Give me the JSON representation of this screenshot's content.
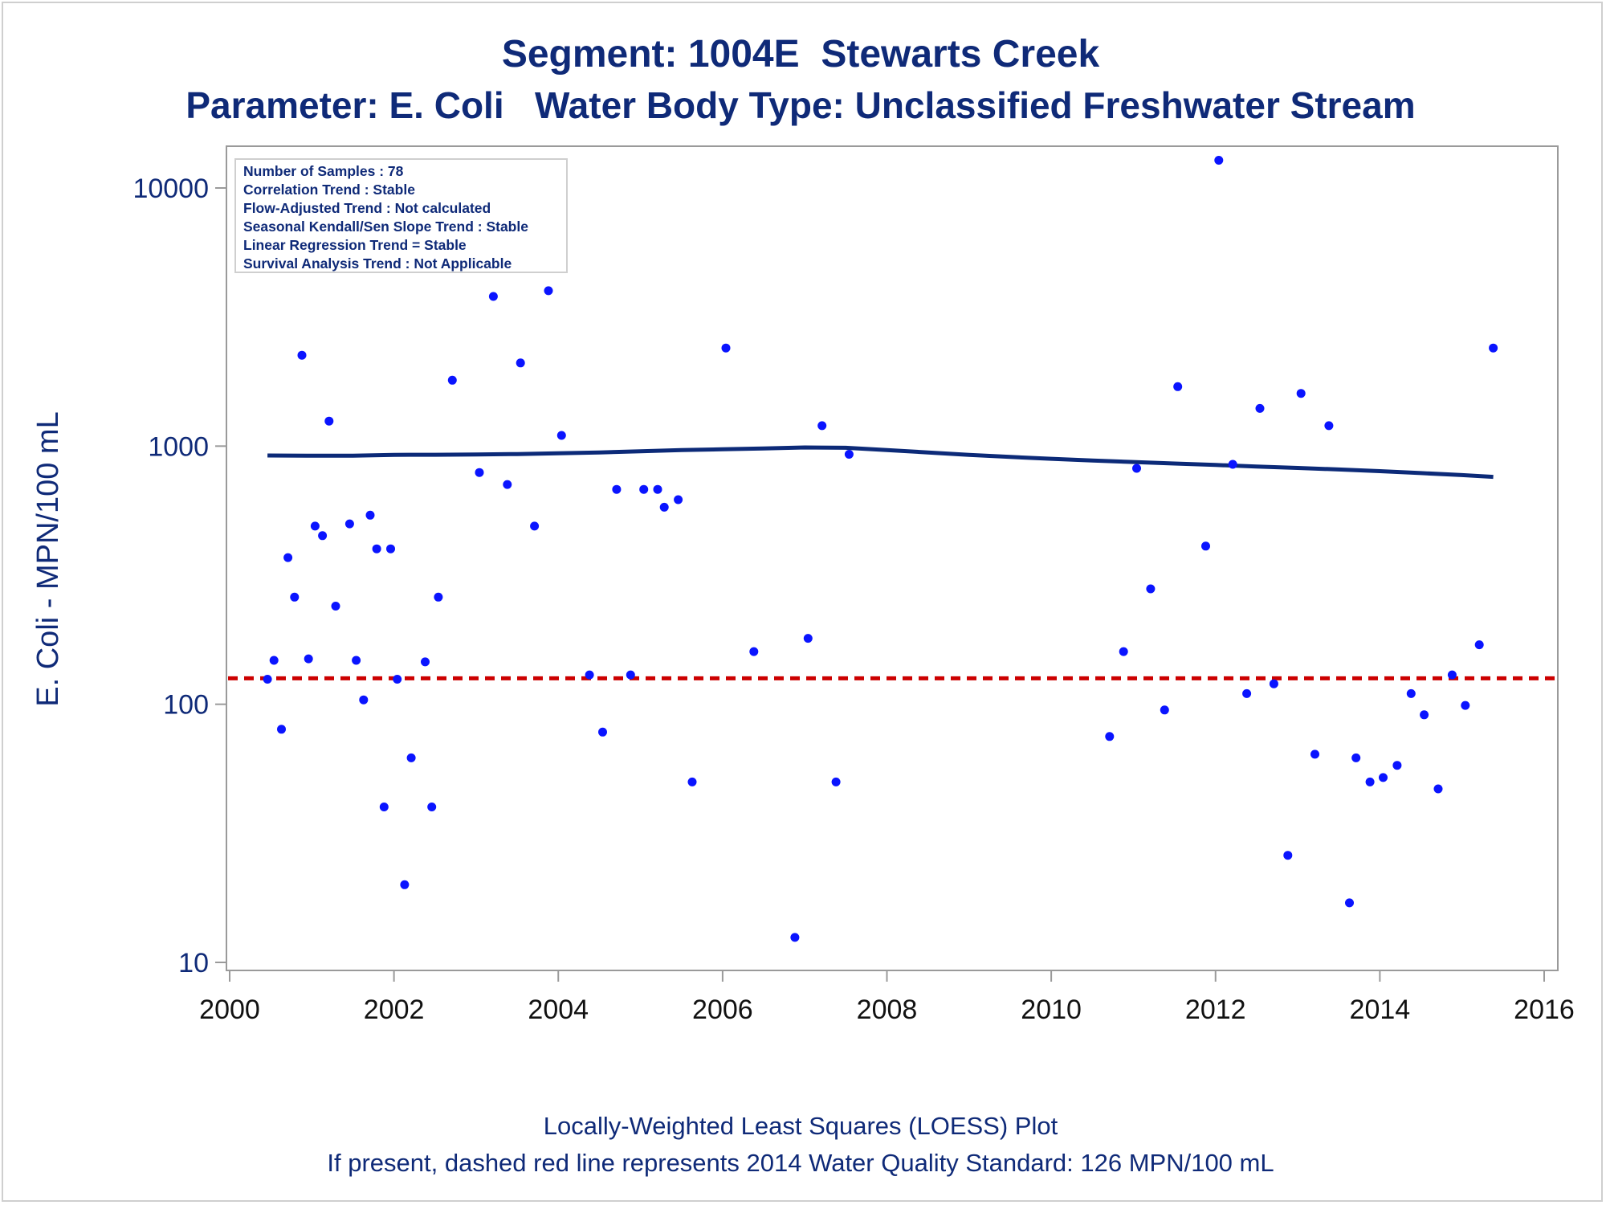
{
  "title_line1": "Segment: 1004E  Stewarts Creek",
  "title_line2": "Parameter: E. Coli   Water Body Type: Unclassified Freshwater Stream",
  "footer_line1": "Locally-Weighted Least Squares (LOESS) Plot",
  "footer_line2": "If present, dashed red line represents 2014 Water Quality Standard: 126 MPN/100 mL",
  "stats_box": [
    "Number of Samples : 78",
    "Correlation Trend : Stable",
    "Flow-Adjusted Trend : Not calculated",
    "Seasonal Kendall/Sen Slope Trend : Stable",
    "Linear Regression Trend = Stable",
    "Survival Analysis Trend : Not Applicable"
  ],
  "colors": {
    "text": "#0f2a78",
    "points": "#0a14ff",
    "loess": "#0c2a78",
    "standard": "#cc0000",
    "axis": "#9a9a9a"
  },
  "chart_data": {
    "type": "scatter",
    "ylabel": "E. Coli - MPN/100 mL",
    "xlabel": "",
    "yscale": "log",
    "xlim": [
      2000,
      2016
    ],
    "ylim": [
      10,
      15000
    ],
    "x_ticks": [
      2000,
      2002,
      2004,
      2006,
      2008,
      2010,
      2012,
      2014,
      2016
    ],
    "y_ticks": [
      10,
      100,
      1000,
      10000
    ],
    "y_tick_labels": [
      "10",
      "100",
      "1000",
      "10000"
    ],
    "x_tick_labels": [
      "2000",
      "2002",
      "2004",
      "2006",
      "2008",
      "2010",
      "2012",
      "2014",
      "2016"
    ],
    "standard_line": 126,
    "points": [
      [
        2000.46,
        125
      ],
      [
        2000.54,
        148
      ],
      [
        2000.63,
        80
      ],
      [
        2000.71,
        370
      ],
      [
        2000.79,
        260
      ],
      [
        2000.88,
        2250
      ],
      [
        2000.96,
        150
      ],
      [
        2001.04,
        490
      ],
      [
        2001.13,
        450
      ],
      [
        2001.21,
        1250
      ],
      [
        2001.29,
        240
      ],
      [
        2001.38,
        4900
      ],
      [
        2001.46,
        500
      ],
      [
        2001.54,
        148
      ],
      [
        2001.63,
        104
      ],
      [
        2001.71,
        540
      ],
      [
        2001.79,
        400
      ],
      [
        2001.88,
        40
      ],
      [
        2001.96,
        400
      ],
      [
        2002.04,
        125
      ],
      [
        2002.13,
        20
      ],
      [
        2002.21,
        62
      ],
      [
        2002.29,
        8000
      ],
      [
        2002.38,
        146
      ],
      [
        2002.46,
        40
      ],
      [
        2002.54,
        260
      ],
      [
        2002.71,
        1800
      ],
      [
        2003.04,
        790
      ],
      [
        2003.21,
        3800
      ],
      [
        2003.38,
        710
      ],
      [
        2003.54,
        2100
      ],
      [
        2003.71,
        490
      ],
      [
        2003.88,
        4000
      ],
      [
        2004.04,
        1100
      ],
      [
        2004.38,
        130
      ],
      [
        2004.54,
        78
      ],
      [
        2004.71,
        680
      ],
      [
        2004.88,
        130
      ],
      [
        2005.04,
        680
      ],
      [
        2005.21,
        680
      ],
      [
        2005.29,
        580
      ],
      [
        2005.46,
        620
      ],
      [
        2005.63,
        50
      ],
      [
        2006.04,
        2400
      ],
      [
        2006.38,
        160
      ],
      [
        2006.88,
        12.5
      ],
      [
        2007.04,
        180
      ],
      [
        2007.21,
        1200
      ],
      [
        2007.38,
        50
      ],
      [
        2007.54,
        930
      ],
      [
        2010.71,
        75
      ],
      [
        2010.88,
        160
      ],
      [
        2011.04,
        820
      ],
      [
        2011.21,
        280
      ],
      [
        2011.38,
        95
      ],
      [
        2011.54,
        1700
      ],
      [
        2011.88,
        410
      ],
      [
        2012.04,
        12800
      ],
      [
        2012.21,
        850
      ],
      [
        2012.38,
        110
      ],
      [
        2012.54,
        1400
      ],
      [
        2012.71,
        120
      ],
      [
        2012.88,
        26
      ],
      [
        2013.04,
        1600
      ],
      [
        2013.21,
        64
      ],
      [
        2013.38,
        1200
      ],
      [
        2013.63,
        17
      ],
      [
        2013.71,
        62
      ],
      [
        2013.88,
        50
      ],
      [
        2014.04,
        52
      ],
      [
        2014.21,
        58
      ],
      [
        2014.38,
        110
      ],
      [
        2014.54,
        91
      ],
      [
        2014.71,
        47
      ],
      [
        2014.88,
        130
      ],
      [
        2015.04,
        99
      ],
      [
        2015.21,
        170
      ],
      [
        2015.38,
        2400
      ]
    ],
    "loess": [
      [
        2000.46,
        920
      ],
      [
        2001.0,
        918
      ],
      [
        2001.5,
        918
      ],
      [
        2002.0,
        925
      ],
      [
        2002.5,
        926
      ],
      [
        2003.0,
        928
      ],
      [
        2003.5,
        932
      ],
      [
        2004.0,
        938
      ],
      [
        2004.5,
        945
      ],
      [
        2005.0,
        955
      ],
      [
        2005.5,
        965
      ],
      [
        2006.0,
        972
      ],
      [
        2006.5,
        980
      ],
      [
        2007.0,
        988
      ],
      [
        2007.5,
        985
      ],
      [
        2008.0,
        965
      ],
      [
        2008.5,
        945
      ],
      [
        2009.0,
        925
      ],
      [
        2009.5,
        908
      ],
      [
        2010.0,
        893
      ],
      [
        2010.5,
        880
      ],
      [
        2011.0,
        868
      ],
      [
        2011.5,
        856
      ],
      [
        2012.0,
        845
      ],
      [
        2012.5,
        834
      ],
      [
        2013.0,
        823
      ],
      [
        2013.5,
        812
      ],
      [
        2014.0,
        800
      ],
      [
        2014.5,
        786
      ],
      [
        2015.0,
        772
      ],
      [
        2015.38,
        760
      ]
    ]
  }
}
